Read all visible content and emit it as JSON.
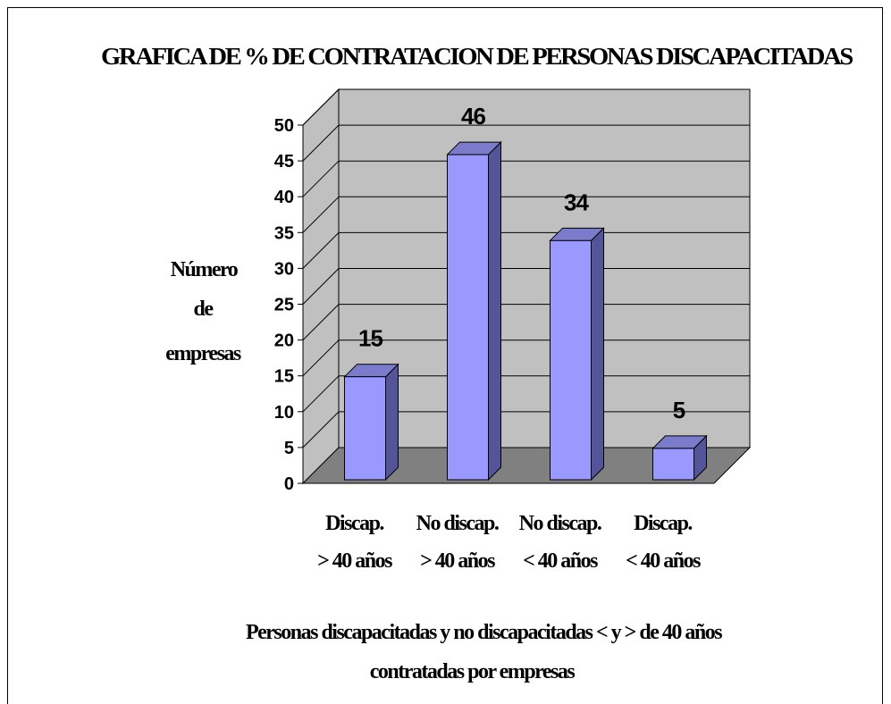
{
  "chart_data": {
    "type": "bar",
    "title": "GRAFICA DE % DE CONTRATACION DE PERSONAS DISCAPACITADAS",
    "ylabel": [
      "Número",
      "de",
      "empresas"
    ],
    "xlabel": [
      "Personas discapacitadas y no discapacitadas < y > de 40 años",
      "contratadas por empresas"
    ],
    "categories": [
      [
        "Discap.",
        "> 40 años"
      ],
      [
        "No discap.",
        "> 40 años"
      ],
      [
        "No discap.",
        "< 40 años"
      ],
      [
        "Discap.",
        "< 40 años"
      ]
    ],
    "values": [
      15,
      46,
      34,
      5
    ],
    "data_labels": [
      "15",
      "46",
      "34",
      "5"
    ],
    "ylim": [
      0,
      50
    ],
    "yticks": [
      0,
      5,
      10,
      15,
      20,
      25,
      30,
      35,
      40,
      45,
      50
    ],
    "grid": true,
    "style": "3d-column",
    "colors": {
      "bar_front": "#9999ff",
      "bar_side": "#545499",
      "bar_top": "#7b7bcc",
      "wall": "#c0c0c0",
      "floor": "#808080"
    }
  }
}
